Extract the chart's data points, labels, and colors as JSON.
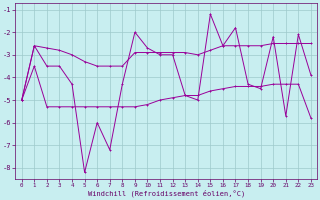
{
  "xlabel": "Windchill (Refroidissement éolien,°C)",
  "background_color": "#c8eef0",
  "grid_color": "#9ec9cb",
  "line_color": "#990099",
  "xlim": [
    -0.5,
    23.5
  ],
  "ylim": [
    -8.5,
    -0.7
  ],
  "yticks": [
    -8,
    -7,
    -6,
    -5,
    -4,
    -3,
    -2,
    -1
  ],
  "xticks": [
    0,
    1,
    2,
    3,
    4,
    5,
    6,
    7,
    8,
    9,
    10,
    11,
    12,
    13,
    14,
    15,
    16,
    17,
    18,
    19,
    20,
    21,
    22,
    23
  ],
  "line_volatile": [
    -5.0,
    -2.6,
    -3.5,
    -3.5,
    -4.3,
    -8.2,
    -6.0,
    -7.2,
    -4.3,
    -2.0,
    -2.7,
    -3.0,
    -3.0,
    -4.8,
    -5.0,
    -1.2,
    -2.6,
    -1.8,
    -4.3,
    -4.5,
    -2.2,
    -5.7,
    -2.1,
    -3.9
  ],
  "line_upper": [
    -5.0,
    -2.6,
    -2.7,
    -2.8,
    -3.0,
    -3.3,
    -3.5,
    -3.5,
    -3.5,
    -2.9,
    -2.9,
    -2.9,
    -2.9,
    -2.9,
    -3.0,
    -2.8,
    -2.6,
    -2.6,
    -2.6,
    -2.6,
    -2.5,
    -2.5,
    -2.5,
    -2.5
  ],
  "line_lower": [
    -5.0,
    -3.5,
    -5.3,
    -5.3,
    -5.3,
    -5.3,
    -5.3,
    -5.3,
    -5.3,
    -5.3,
    -5.2,
    -5.0,
    -4.9,
    -4.8,
    -4.8,
    -4.6,
    -4.5,
    -4.4,
    -4.4,
    -4.4,
    -4.3,
    -4.3,
    -4.3,
    -5.8
  ]
}
